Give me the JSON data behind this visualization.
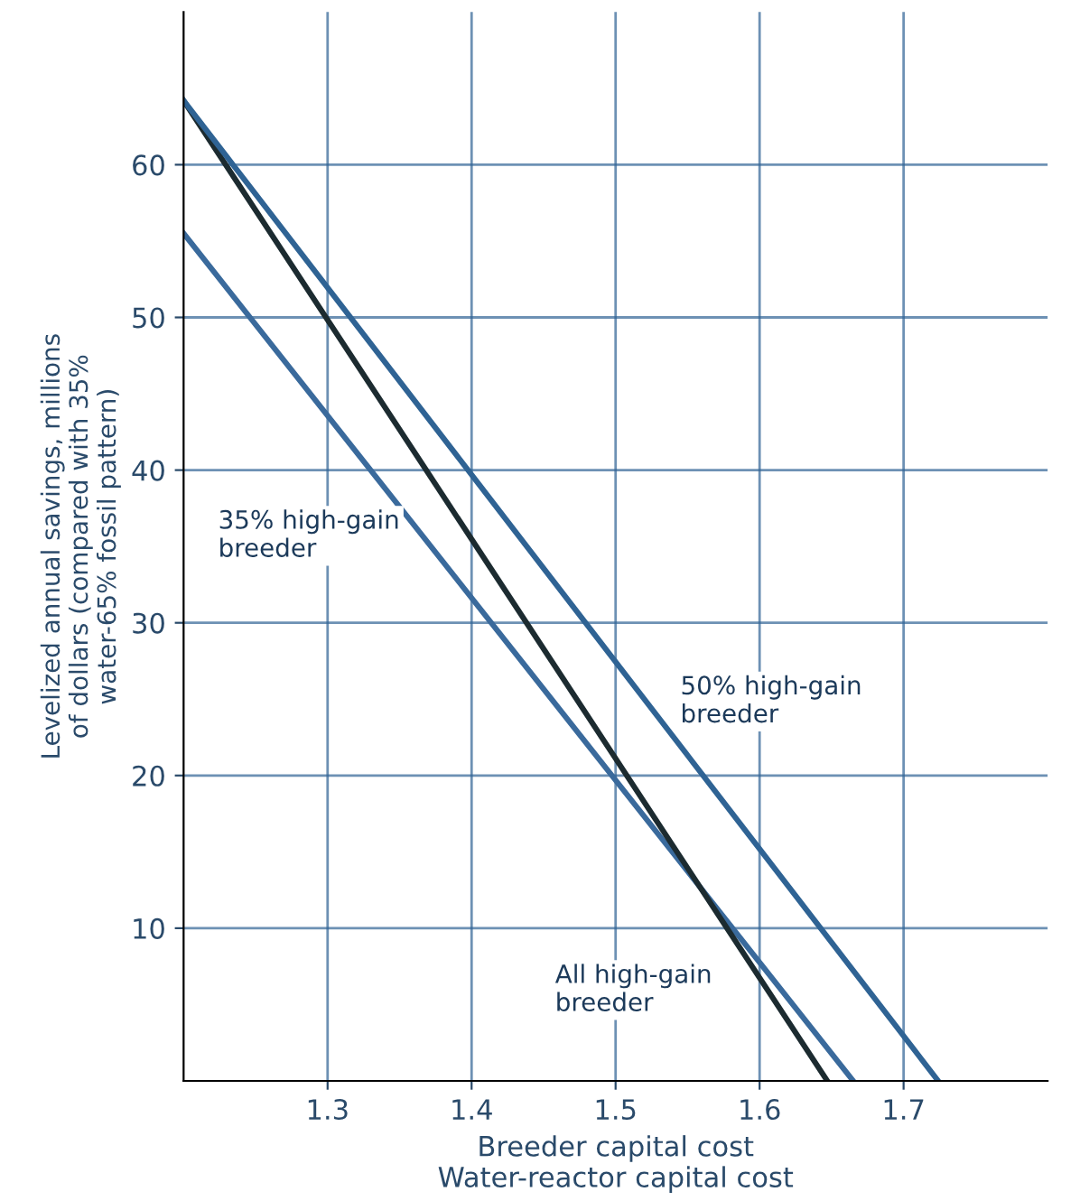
{
  "chart_data": {
    "type": "line",
    "xlabel": "Breeder capital cost\nWater-reactor capital cost",
    "ylabel": "Levelized annual savings, millions\nof dollars (compared with 35%\nwater-65% fossil pattern)",
    "series": [
      {
        "color": "#3a6a9c",
        "x": [
          1.2,
          1.665
        ],
        "values": [
          55.5,
          0
        ]
      },
      {
        "color": "#1c2b30",
        "x": [
          1.2,
          1.647
        ],
        "values": [
          64.2,
          0
        ]
      },
      {
        "color": "#2f6394",
        "x": [
          1.2,
          1.724
        ],
        "values": [
          64.2,
          0
        ]
      }
    ],
    "annotations": [
      "35% high-gain\nbreeder",
      "50% high-gain\nbreeder",
      "All high-gain\nbreeder"
    ],
    "xlim": [
      1.2,
      1.8
    ],
    "ylim": [
      0,
      70
    ],
    "xticks": [
      1.3,
      1.4,
      1.5,
      1.6,
      1.7
    ],
    "yticks": [
      10,
      20,
      30,
      40,
      50,
      60
    ],
    "grid": true,
    "legend": false,
    "line_style": "solid",
    "marker": "none"
  }
}
